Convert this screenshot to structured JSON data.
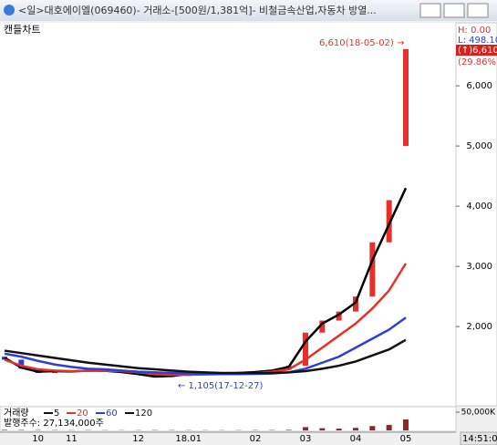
{
  "window": {
    "title": "<일>대호에이엘(069460)- 거래소-[500원/1,381억]- 비철금속산업,자동차 방열...",
    "time": "14:51:0"
  },
  "chart_data": [
    {
      "type": "candlestick",
      "title": "캔들차트",
      "info": [
        "H: 0.00",
        "L: 498.10",
        "(↑)6,610",
        "(29.86%)"
      ],
      "annotations": [
        "6,610(18-05-02) →",
        "← 1,105(17-12-27)"
      ],
      "categories": [
        null,
        null,
        "10",
        null,
        "11",
        null,
        null,
        null,
        "12",
        null,
        null,
        "18.01",
        null,
        null,
        null,
        "02",
        null,
        null,
        "03",
        null,
        null,
        "04",
        null,
        null,
        "05"
      ],
      "open": [
        1500,
        1450,
        1300,
        1230,
        1260,
        1250,
        1280,
        1270,
        1240,
        1200,
        1160,
        1180,
        1220,
        1200,
        1210,
        1230,
        1250,
        1280,
        1350,
        1900,
        2100,
        2250,
        2500,
        3400,
        5000
      ],
      "close": [
        1450,
        1300,
        1230,
        1260,
        1250,
        1280,
        1270,
        1240,
        1200,
        1160,
        1180,
        1220,
        1200,
        1210,
        1230,
        1250,
        1280,
        1350,
        1900,
        2100,
        2250,
        2500,
        3400,
        4100,
        6610
      ],
      "up_color": "#e8302a",
      "down_color": "#2a3fd6",
      "series": [
        {
          "color": "#000000",
          "values": [
            1480,
            1320,
            1250,
            1260,
            1255,
            1270,
            1265,
            1245,
            1210,
            1170,
            1180,
            1210,
            1210,
            1215,
            1230,
            1245,
            1270,
            1330,
            1750,
            2050,
            2200,
            2400,
            3100,
            3700,
            4300
          ]
        },
        {
          "color": "#e8302a",
          "values": [
            1450,
            1350,
            1290,
            1270,
            1260,
            1265,
            1265,
            1260,
            1240,
            1210,
            1200,
            1200,
            1205,
            1210,
            1220,
            1230,
            1250,
            1290,
            1450,
            1650,
            1850,
            2050,
            2300,
            2600,
            3050
          ]
        },
        {
          "color": "#2a3fd6",
          "values": [
            1550,
            1500,
            1430,
            1370,
            1330,
            1300,
            1290,
            1270,
            1250,
            1240,
            1230,
            1220,
            1215,
            1210,
            1210,
            1215,
            1220,
            1240,
            1300,
            1400,
            1500,
            1650,
            1800,
            1950,
            2150
          ]
        },
        {
          "color": "#111111",
          "values": [
            1600,
            1560,
            1520,
            1480,
            1440,
            1400,
            1370,
            1340,
            1310,
            1290,
            1270,
            1250,
            1240,
            1230,
            1230,
            1230,
            1230,
            1240,
            1260,
            1300,
            1350,
            1420,
            1520,
            1620,
            1780
          ]
        }
      ],
      "ylim": [
        760,
        6820
      ],
      "yticks": [
        {
          "value": 2000,
          "label": "2,000"
        },
        {
          "value": 3000,
          "label": "3,000"
        },
        {
          "value": 4000,
          "label": "4,000"
        },
        {
          "value": 5000,
          "label": "5,000"
        },
        {
          "value": 6000,
          "label": "6,000"
        }
      ]
    },
    {
      "type": "bar",
      "title": "거래량",
      "legend": [
        {
          "name": "5",
          "color": "#111111"
        },
        {
          "name": "20",
          "color": "#e8302a"
        },
        {
          "name": "60",
          "color": "#2a3fd6"
        },
        {
          "name": "120",
          "color": "#111111"
        }
      ],
      "shares": "발행주수: 27,134,000주",
      "values": [
        1500,
        1200,
        900,
        800,
        700,
        800,
        700,
        600,
        700,
        900,
        800,
        700,
        600,
        600,
        700,
        800,
        900,
        1500,
        9000,
        6000,
        5000,
        7000,
        12000,
        15000,
        30000
      ],
      "color": "#8a2a2a",
      "ylim": [
        0,
        55000
      ],
      "yticks": [
        {
          "value": 50000,
          "label": "50,000K"
        }
      ]
    }
  ]
}
